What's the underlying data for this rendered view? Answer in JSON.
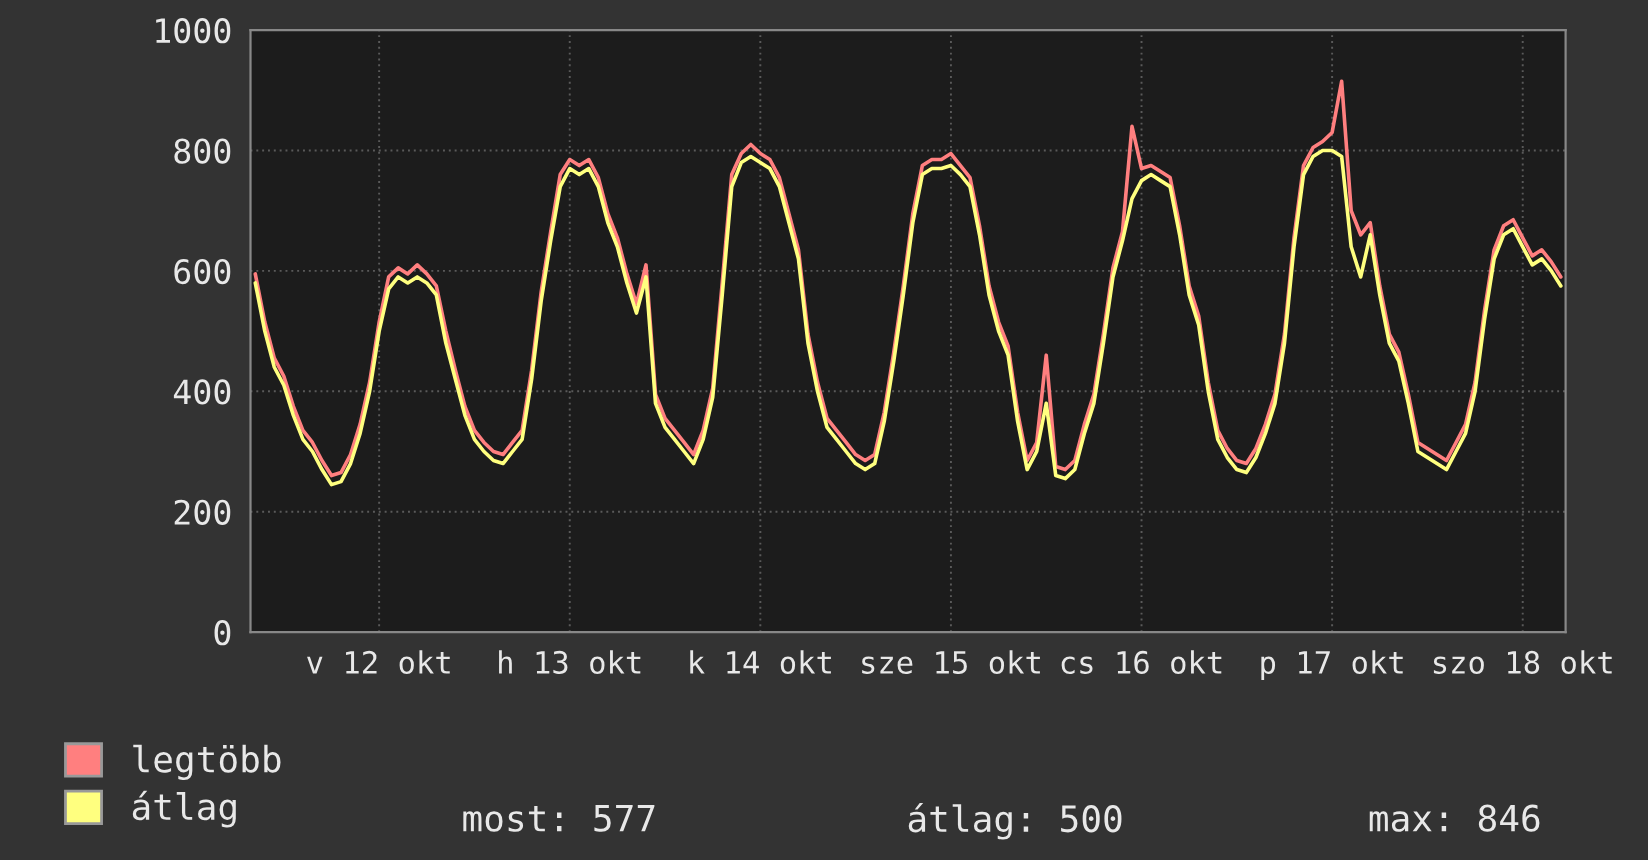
{
  "chart_data": {
    "type": "line",
    "categories": [
      null,
      null,
      null,
      null,
      null,
      null,
      null,
      null,
      null,
      null,
      null,
      null,
      null,
      "v 12 okt",
      null,
      null,
      null,
      null,
      null,
      null,
      null,
      null,
      null,
      null,
      null,
      null,
      null,
      null,
      null,
      null,
      null,
      null,
      null,
      "h 13 okt",
      null,
      null,
      null,
      null,
      null,
      null,
      null,
      null,
      null,
      null,
      null,
      null,
      null,
      null,
      null,
      null,
      null,
      null,
      null,
      "k 14 okt",
      null,
      null,
      null,
      null,
      null,
      null,
      null,
      null,
      null,
      null,
      null,
      null,
      null,
      null,
      null,
      null,
      null,
      null,
      null,
      "sze 15 okt",
      null,
      null,
      null,
      null,
      null,
      null,
      null,
      null,
      null,
      null,
      null,
      null,
      null,
      null,
      null,
      null,
      null,
      null,
      null,
      "cs 16 okt",
      null,
      null,
      null,
      null,
      null,
      null,
      null,
      null,
      null,
      null,
      null,
      null,
      null,
      null,
      null,
      null,
      null,
      null,
      null,
      "p 17 okt",
      null,
      null,
      null,
      null,
      null,
      null,
      null,
      null,
      null,
      null,
      null,
      null,
      null,
      null,
      null,
      null,
      null,
      null,
      null,
      "szo 18 okt",
      null,
      null,
      null,
      null
    ],
    "series": [
      {
        "name": "legtöbb",
        "color": "#ff7f7f",
        "values": [
          595,
          515,
          455,
          425,
          375,
          335,
          315,
          285,
          260,
          265,
          295,
          345,
          415,
          515,
          590,
          605,
          595,
          610,
          595,
          575,
          500,
          435,
          375,
          335,
          315,
          300,
          295,
          315,
          335,
          435,
          565,
          665,
          760,
          785,
          775,
          785,
          755,
          695,
          655,
          595,
          545,
          610,
          395,
          355,
          335,
          315,
          295,
          335,
          405,
          580,
          760,
          795,
          810,
          795,
          785,
          755,
          695,
          635,
          495,
          415,
          355,
          335,
          315,
          295,
          285,
          295,
          365,
          465,
          575,
          695,
          775,
          785,
          785,
          795,
          775,
          755,
          675,
          575,
          515,
          475,
          365,
          285,
          315,
          460,
          275,
          270,
          285,
          345,
          395,
          495,
          605,
          665,
          840,
          770,
          775,
          765,
          755,
          675,
          575,
          525,
          415,
          335,
          305,
          285,
          280,
          305,
          345,
          395,
          495,
          655,
          775,
          805,
          815,
          830,
          915,
          700,
          660,
          680,
          575,
          495,
          465,
          395,
          315,
          305,
          295,
          285,
          315,
          345,
          415,
          535,
          635,
          675,
          685,
          655,
          625,
          635,
          615,
          590
        ]
      },
      {
        "name": "átlag",
        "color": "#ffff7f",
        "values": [
          580,
          500,
          440,
          410,
          360,
          320,
          300,
          270,
          245,
          250,
          280,
          330,
          400,
          500,
          570,
          590,
          580,
          590,
          580,
          560,
          480,
          420,
          360,
          320,
          300,
          285,
          280,
          300,
          320,
          420,
          550,
          650,
          740,
          770,
          760,
          770,
          740,
          680,
          640,
          580,
          530,
          590,
          380,
          340,
          320,
          300,
          280,
          320,
          390,
          560,
          740,
          780,
          790,
          780,
          770,
          740,
          680,
          620,
          480,
          400,
          340,
          320,
          300,
          280,
          270,
          280,
          350,
          450,
          560,
          680,
          760,
          770,
          770,
          775,
          760,
          740,
          660,
          560,
          500,
          460,
          350,
          270,
          300,
          380,
          260,
          255,
          270,
          330,
          380,
          480,
          590,
          650,
          720,
          750,
          760,
          750,
          740,
          660,
          560,
          510,
          400,
          320,
          290,
          270,
          265,
          290,
          330,
          380,
          480,
          640,
          760,
          790,
          800,
          800,
          790,
          640,
          590,
          660,
          560,
          480,
          450,
          380,
          300,
          290,
          280,
          270,
          300,
          330,
          400,
          520,
          620,
          660,
          670,
          640,
          610,
          620,
          600,
          575
        ]
      }
    ],
    "ylim": [
      0,
      1000
    ],
    "yticks": [
      0,
      200,
      400,
      600,
      800,
      1000
    ],
    "grid": true,
    "legend": "bottom left",
    "annotations": [
      "most: 577",
      "átlag: 500",
      "max: 846"
    ]
  }
}
